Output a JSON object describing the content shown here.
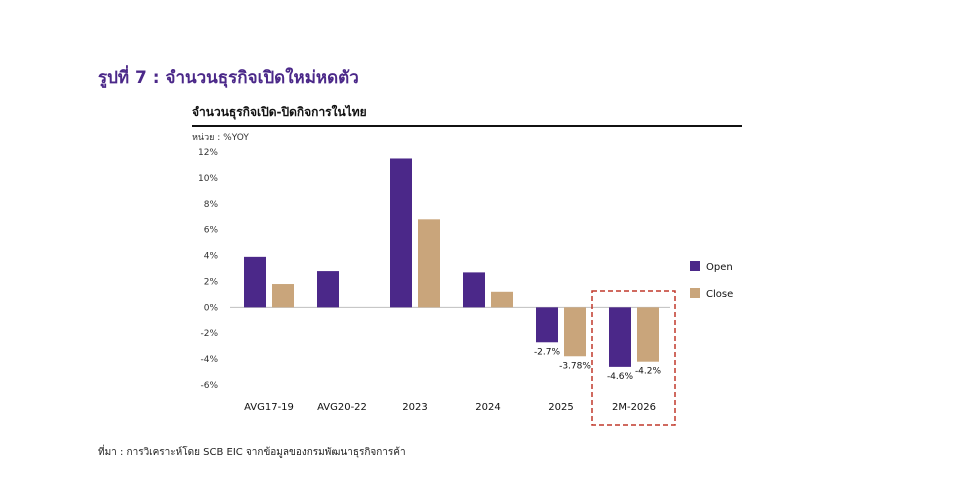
{
  "figure_title": "รูปที่ 7 : จำนวนธุรกิจเปิดใหม่หดตัว",
  "source_note": "ที่มา : การวิเคราะห์โดย SCB EIC จากข้อมูลของกรมพัฒนาธุรกิจการค้า",
  "colors": {
    "open": "#4b2889",
    "close": "#c9a57b",
    "highlight": "#c0392b",
    "title": "#4b2889"
  },
  "chart_data": {
    "type": "bar",
    "title": "จำนวนธุรกิจเปิด-ปิดกิจการในไทย",
    "unit_label": "หน่วย : %YOY",
    "categories": [
      "AVG17-19",
      "AVG20-22",
      "2023",
      "2024",
      "2025",
      "2M-2026"
    ],
    "series": [
      {
        "name": "Open",
        "values": [
          3.9,
          2.8,
          11.5,
          2.7,
          -2.7,
          -4.6
        ]
      },
      {
        "name": "Close",
        "values": [
          1.8,
          0.0,
          6.8,
          1.2,
          -3.78,
          -4.2
        ]
      }
    ],
    "data_labels": [
      {
        "category": "2025",
        "series": "Open",
        "text": "-2.7%"
      },
      {
        "category": "2025",
        "series": "Close",
        "text": "-3.78%"
      },
      {
        "category": "2M-2026",
        "series": "Open",
        "text": "-4.6%"
      },
      {
        "category": "2M-2026",
        "series": "Close",
        "text": "-4.2%"
      }
    ],
    "y_ticks": [
      12,
      10,
      8,
      6,
      4,
      2,
      0,
      -2,
      -4,
      -6
    ],
    "y_tick_labels": [
      "12%",
      "10%",
      "8%",
      "6%",
      "4%",
      "2%",
      "0%",
      "-2%",
      "-4%",
      "-6%"
    ],
    "ylim": [
      -6,
      12
    ],
    "legend": [
      "Open",
      "Close"
    ],
    "legend_position": "right",
    "highlight_category": "2M-2026"
  }
}
